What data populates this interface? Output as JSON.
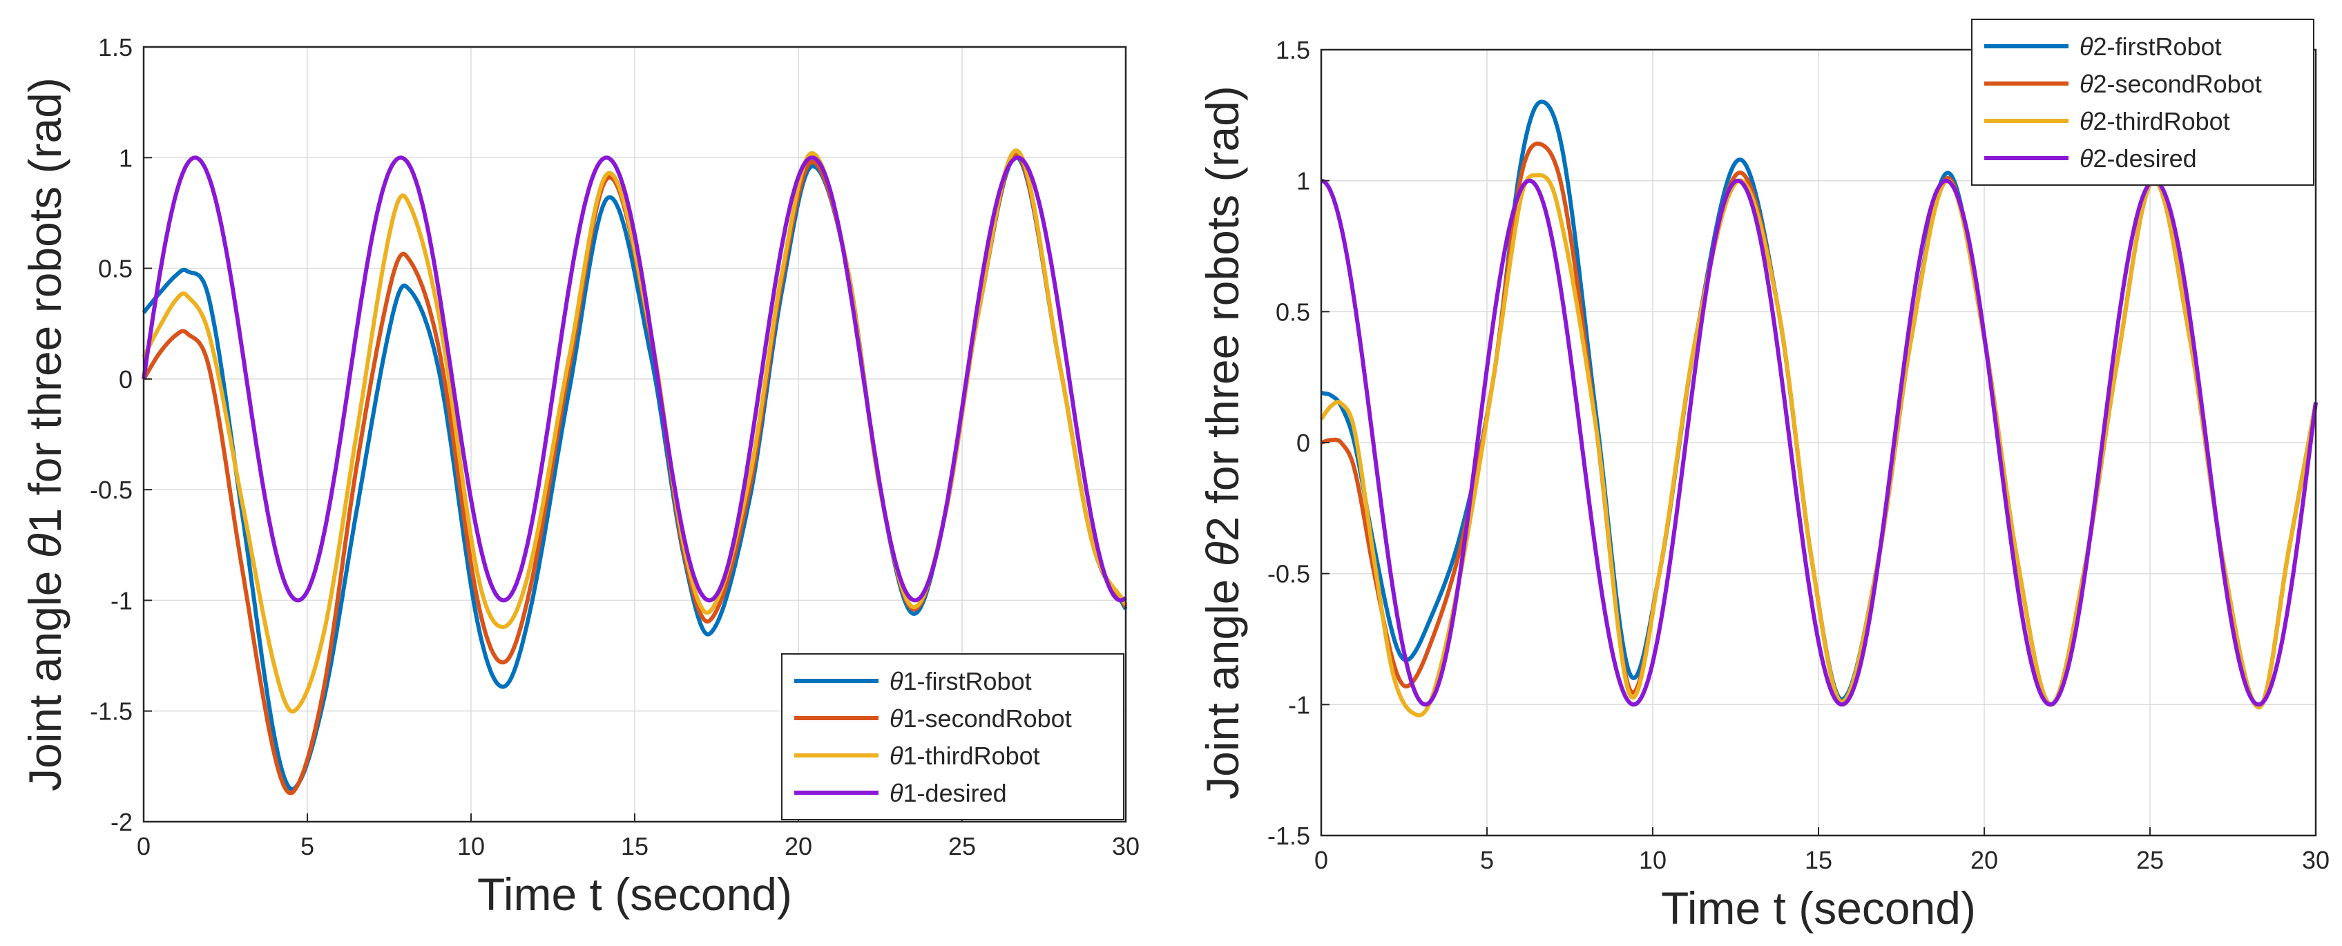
{
  "chart_data": [
    {
      "type": "line",
      "xlabel": "Time t (second)",
      "ylabel_parts": [
        "Joint angle ",
        "θ",
        "1 for three robots (rad)"
      ],
      "xlim": [
        0,
        30
      ],
      "ylim": [
        -2,
        1.5
      ],
      "xticks": [
        0,
        5,
        10,
        15,
        20,
        25,
        30
      ],
      "xtick_labels": [
        "0",
        "5",
        "10",
        "15",
        "20",
        "25",
        "30"
      ],
      "yticks": [
        -2,
        -1.5,
        -1,
        -0.5,
        0,
        0.5,
        1,
        1.5
      ],
      "ytick_labels": [
        "-2",
        "-1.5",
        "-1",
        "-0.5",
        "0",
        "0.5",
        "1",
        "1.5"
      ],
      "grid": true,
      "legend_position": "bottom-right",
      "series": [
        {
          "name": "θ1-firstRobot",
          "legend_parts": [
            "θ",
            "1-firstRobot"
          ],
          "color": "#0072BD",
          "x": [
            0,
            0.5,
            1.0,
            1.3,
            2.0,
            3.0,
            4.0,
            4.6,
            5.5,
            6.5,
            7.5,
            8.0,
            9.0,
            10.2,
            11.0,
            11.8,
            13.0,
            14.2,
            15.5,
            16.5,
            17.3,
            18.5,
            19.5,
            20.4,
            21.5,
            22.5,
            23.5,
            24.5,
            25.5,
            26.7,
            28.0,
            29.0,
            30.0
          ],
          "y": [
            0.3,
            0.39,
            0.47,
            0.49,
            0.36,
            -0.6,
            -1.62,
            -1.85,
            -1.45,
            -0.6,
            0.22,
            0.42,
            0.05,
            -1.1,
            -1.39,
            -1.05,
            -0.05,
            0.82,
            0.1,
            -0.8,
            -1.15,
            -0.55,
            0.4,
            0.96,
            0.5,
            -0.5,
            -1.06,
            -0.6,
            0.3,
            1.0,
            0.05,
            -0.75,
            -1.04
          ]
        },
        {
          "name": "θ1-secondRobot",
          "legend_parts": [
            "θ",
            "1-secondRobot"
          ],
          "color": "#D95319",
          "x": [
            0,
            0.5,
            1.0,
            1.3,
            2.0,
            3.0,
            4.0,
            4.6,
            5.5,
            6.5,
            7.5,
            8.0,
            9.0,
            10.2,
            11.0,
            11.8,
            13.0,
            14.2,
            15.5,
            16.5,
            17.3,
            18.5,
            19.5,
            20.4,
            21.5,
            22.5,
            23.5,
            24.5,
            25.5,
            26.7,
            28.0,
            29.0,
            30.0
          ],
          "y": [
            0.0,
            0.12,
            0.2,
            0.21,
            0.05,
            -0.85,
            -1.7,
            -1.86,
            -1.4,
            -0.4,
            0.4,
            0.56,
            0.15,
            -1.0,
            -1.28,
            -0.95,
            0.05,
            0.91,
            0.18,
            -0.78,
            -1.09,
            -0.5,
            0.45,
            0.98,
            0.5,
            -0.5,
            -1.04,
            -0.6,
            0.3,
            1.01,
            0.05,
            -0.75,
            -1.03
          ]
        },
        {
          "name": "θ1-thirdRobot",
          "legend_parts": [
            "θ",
            "1-thirdRobot"
          ],
          "color": "#EDB120",
          "x": [
            0,
            0.5,
            1.0,
            1.3,
            2.0,
            3.0,
            4.0,
            4.6,
            5.5,
            6.5,
            7.5,
            8.0,
            9.0,
            10.2,
            11.0,
            11.8,
            13.0,
            14.2,
            15.5,
            16.5,
            17.3,
            18.5,
            19.5,
            20.4,
            21.5,
            22.5,
            23.5,
            24.5,
            25.5,
            26.7,
            28.0,
            29.0,
            30.0
          ],
          "y": [
            0.1,
            0.24,
            0.36,
            0.38,
            0.2,
            -0.55,
            -1.3,
            -1.5,
            -1.15,
            -0.25,
            0.65,
            0.82,
            0.3,
            -0.88,
            -1.12,
            -0.85,
            0.1,
            0.93,
            0.2,
            -0.75,
            -1.05,
            -0.45,
            0.48,
            1.02,
            0.5,
            -0.5,
            -1.03,
            -0.6,
            0.3,
            1.03,
            0.05,
            -0.75,
            -1.02
          ]
        },
        {
          "name": "θ1-desired",
          "legend_parts": [
            "θ",
            "1-desired"
          ],
          "color": "#8A17D6",
          "function": "sin(t)"
        }
      ]
    },
    {
      "type": "line",
      "xlabel": "Time t (second)",
      "ylabel_parts": [
        "Joint angle ",
        "θ",
        "2 for three robots (rad)"
      ],
      "xlim": [
        0,
        30
      ],
      "ylim": [
        -1.5,
        1.5
      ],
      "xticks": [
        0,
        5,
        10,
        15,
        20,
        25,
        30
      ],
      "xtick_labels": [
        "0",
        "5",
        "10",
        "15",
        "20",
        "25",
        "30"
      ],
      "yticks": [
        -1.5,
        -1,
        -0.5,
        0,
        0.5,
        1,
        1.5
      ],
      "ytick_labels": [
        "-1.5",
        "-1",
        "-0.5",
        "0",
        "0.5",
        "1",
        "1.5"
      ],
      "grid": true,
      "legend_position": "top-right",
      "series": [
        {
          "name": "θ2-firstRobot",
          "legend_parts": [
            "θ",
            "2-firstRobot"
          ],
          "color": "#0072BD",
          "x": [
            0,
            0.3,
            0.6,
            1.0,
            1.6,
            2.2,
            2.6,
            3.2,
            4.2,
            5.2,
            6.0,
            6.6,
            7.3,
            8.3,
            9.3,
            10.2,
            11.3,
            12.6,
            13.8,
            14.8,
            15.7,
            16.8,
            17.8,
            18.9,
            20.0,
            21.0,
            22.0,
            23.0,
            24.0,
            25.1,
            26.2,
            27.2,
            28.3,
            29.2,
            30.0
          ],
          "y": [
            0.19,
            0.18,
            0.14,
            0.0,
            -0.4,
            -0.75,
            -0.83,
            -0.7,
            -0.35,
            0.25,
            1.05,
            1.3,
            1.1,
            0.1,
            -0.88,
            -0.5,
            0.4,
            1.08,
            0.5,
            -0.45,
            -0.98,
            -0.45,
            0.4,
            1.03,
            0.4,
            -0.45,
            -1.0,
            -0.5,
            0.3,
            1.0,
            0.4,
            -0.45,
            -1.01,
            -0.4,
            0.15
          ]
        },
        {
          "name": "θ2-secondRobot",
          "legend_parts": [
            "θ",
            "2-secondRobot"
          ],
          "color": "#D95319",
          "x": [
            0,
            0.3,
            0.6,
            1.0,
            1.6,
            2.2,
            2.6,
            3.2,
            4.2,
            5.2,
            6.0,
            6.6,
            7.3,
            8.3,
            9.3,
            10.2,
            11.3,
            12.6,
            13.8,
            14.8,
            15.7,
            16.8,
            17.8,
            18.9,
            20.0,
            21.0,
            22.0,
            23.0,
            24.0,
            25.1,
            26.2,
            27.2,
            28.3,
            29.2,
            30.0
          ],
          "y": [
            0.0,
            0.01,
            0.0,
            -0.1,
            -0.5,
            -0.85,
            -0.93,
            -0.8,
            -0.4,
            0.25,
            1.0,
            1.14,
            0.95,
            0.05,
            -0.94,
            -0.5,
            0.4,
            1.03,
            0.5,
            -0.45,
            -0.99,
            -0.45,
            0.4,
            1.01,
            0.4,
            -0.45,
            -1.0,
            -0.5,
            0.3,
            1.0,
            0.4,
            -0.45,
            -1.01,
            -0.4,
            0.15
          ]
        },
        {
          "name": "θ2-thirdRobot",
          "legend_parts": [
            "θ",
            "2-thirdRobot"
          ],
          "color": "#EDB120",
          "x": [
            0,
            0.3,
            0.6,
            1.0,
            1.6,
            2.2,
            2.9,
            3.4,
            4.2,
            5.2,
            6.0,
            6.4,
            7.1,
            8.3,
            9.3,
            10.2,
            11.3,
            12.6,
            13.8,
            14.8,
            15.7,
            16.8,
            17.8,
            18.9,
            20.0,
            21.0,
            22.0,
            23.0,
            24.0,
            25.1,
            26.2,
            27.2,
            28.3,
            29.2,
            30.0
          ],
          "y": [
            0.09,
            0.14,
            0.15,
            0.05,
            -0.45,
            -0.9,
            -1.04,
            -0.95,
            -0.5,
            0.25,
            0.92,
            1.02,
            0.92,
            0.05,
            -0.96,
            -0.5,
            0.4,
            1.0,
            0.5,
            -0.45,
            -0.99,
            -0.45,
            0.4,
            1.0,
            0.4,
            -0.45,
            -1.0,
            -0.5,
            0.3,
            1.0,
            0.4,
            -0.45,
            -1.01,
            -0.4,
            0.15
          ]
        },
        {
          "name": "θ2-desired",
          "legend_parts": [
            "θ",
            "2-desired"
          ],
          "color": "#8A17D6",
          "function": "cos(t)"
        }
      ]
    }
  ]
}
